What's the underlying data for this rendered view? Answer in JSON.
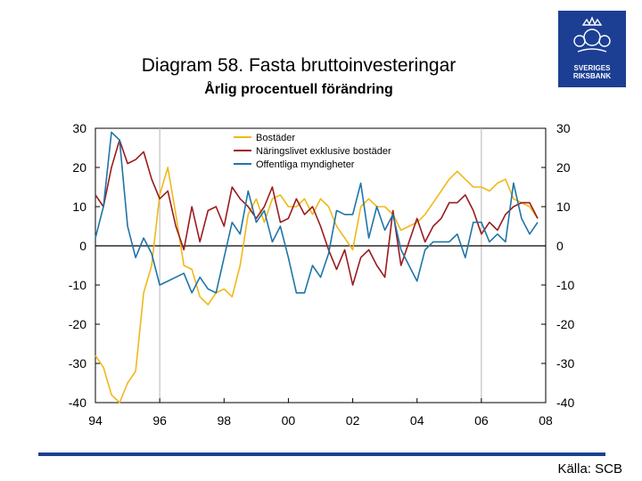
{
  "header": {
    "title": "Diagram 58. Fasta bruttoinvesteringar",
    "subtitle": "Årlig procentuell förändring"
  },
  "logo": {
    "icon": "crown-emblem-icon",
    "line1": "SVERIGES",
    "line2": "RIKSBANK",
    "color": "#1c3f94"
  },
  "footer": {
    "source": "Källa: SCB"
  },
  "colors": {
    "bostader": "#f0b819",
    "naringslivet": "#9b1b1e",
    "offentliga": "#1f75a8",
    "brand": "#1c3f94"
  },
  "chart_data": {
    "type": "line",
    "title": "Diagram 58. Fasta bruttoinvesteringar",
    "subtitle": "Årlig procentuell förändring",
    "xlabel": "",
    "ylabel": "",
    "xlim": [
      1994,
      2008
    ],
    "ylim": [
      -40,
      30
    ],
    "x_ticks": [
      {
        "value": 1994,
        "label": "94"
      },
      {
        "value": 1996,
        "label": "96"
      },
      {
        "value": 1998,
        "label": "98"
      },
      {
        "value": 2000,
        "label": "00"
      },
      {
        "value": 2002,
        "label": "02"
      },
      {
        "value": 2004,
        "label": "04"
      },
      {
        "value": 2006,
        "label": "06"
      },
      {
        "value": 2008,
        "label": "08"
      }
    ],
    "y_ticks_left": [
      "30",
      "20",
      "10",
      "0",
      "-10",
      "-20",
      "-30",
      "-40"
    ],
    "y_ticks_right": [
      "30",
      "20",
      "10",
      "0",
      "-10",
      "-20",
      "-30",
      "-40"
    ],
    "y_tick_values": [
      30,
      20,
      10,
      0,
      -10,
      -20,
      -30,
      -40
    ],
    "vertical_lines": [
      1996,
      2006
    ],
    "legend_position": "top-center",
    "series": [
      {
        "name": "Bostäder",
        "color": "#f0b819",
        "x": [
          1994.0,
          1994.25,
          1994.5,
          1994.75,
          1995.0,
          1995.25,
          1995.5,
          1995.75,
          1996.0,
          1996.25,
          1996.5,
          1996.75,
          1997.0,
          1997.25,
          1997.5,
          1997.75,
          1998.0,
          1998.25,
          1998.5,
          1998.75,
          1999.0,
          1999.25,
          1999.5,
          1999.75,
          2000.0,
          2000.25,
          2000.5,
          2000.75,
          2001.0,
          2001.25,
          2001.5,
          2001.75,
          2002.0,
          2002.25,
          2002.5,
          2002.75,
          2003.0,
          2003.25,
          2003.5,
          2003.75,
          2004.0,
          2004.25,
          2004.5,
          2004.75,
          2005.0,
          2005.25,
          2005.5,
          2005.75,
          2006.0,
          2006.25,
          2006.5,
          2006.75,
          2007.0,
          2007.25,
          2007.5,
          2007.75
        ],
        "values": [
          -28,
          -31,
          -38,
          -40,
          -35,
          -32,
          -12,
          -5,
          13,
          20,
          8,
          -5,
          -6,
          -13,
          -15,
          -12,
          -11,
          -13,
          -5,
          8,
          12,
          6,
          12,
          13,
          10,
          10,
          12,
          8,
          12,
          10,
          5,
          2,
          -1,
          10,
          12,
          10,
          10,
          8,
          4,
          5,
          6,
          8,
          11,
          14,
          17,
          19,
          17,
          15,
          15,
          14,
          16,
          17,
          12,
          11,
          10,
          7
        ]
      },
      {
        "name": "Näringslivet exklusive bostäder",
        "color": "#9b1b1e",
        "x": [
          1994.0,
          1994.25,
          1994.5,
          1994.75,
          1995.0,
          1995.25,
          1995.5,
          1995.75,
          1996.0,
          1996.25,
          1996.5,
          1996.75,
          1997.0,
          1997.25,
          1997.5,
          1997.75,
          1998.0,
          1998.25,
          1998.5,
          1998.75,
          1999.0,
          1999.25,
          1999.5,
          1999.75,
          2000.0,
          2000.25,
          2000.5,
          2000.75,
          2001.0,
          2001.25,
          2001.5,
          2001.75,
          2002.0,
          2002.25,
          2002.5,
          2002.75,
          2003.0,
          2003.25,
          2003.5,
          2003.75,
          2004.0,
          2004.25,
          2004.5,
          2004.75,
          2005.0,
          2005.25,
          2005.5,
          2005.75,
          2006.0,
          2006.25,
          2006.5,
          2006.75,
          2007.0,
          2007.25,
          2007.5,
          2007.75
        ],
        "values": [
          13,
          10,
          20,
          27,
          21,
          22,
          24,
          17,
          12,
          14,
          5,
          -1,
          10,
          1,
          9,
          10,
          5,
          15,
          12,
          10,
          7,
          10,
          15,
          6,
          7,
          12,
          8,
          10,
          5,
          -1,
          -6,
          -1,
          -10,
          -3,
          -1,
          -5,
          -8,
          9,
          -5,
          1,
          7,
          1,
          5,
          7,
          11,
          11,
          13,
          9,
          3,
          6,
          4,
          8,
          10,
          11,
          11,
          7
        ]
      },
      {
        "name": "Offentliga myndigheter",
        "color": "#1f75a8",
        "x": [
          1994.0,
          1994.25,
          1994.5,
          1994.75,
          1995.0,
          1995.25,
          1995.5,
          1995.75,
          1996.0,
          1996.25,
          1996.5,
          1996.75,
          1997.0,
          1997.25,
          1997.5,
          1997.75,
          1998.0,
          1998.25,
          1998.5,
          1998.75,
          1999.0,
          1999.25,
          1999.5,
          1999.75,
          2000.0,
          2000.25,
          2000.5,
          2000.75,
          2001.0,
          2001.25,
          2001.5,
          2001.75,
          2002.0,
          2002.25,
          2002.5,
          2002.75,
          2003.0,
          2003.25,
          2003.5,
          2003.75,
          2004.0,
          2004.25,
          2004.5,
          2004.75,
          2005.0,
          2005.25,
          2005.5,
          2005.75,
          2006.0,
          2006.25,
          2006.5,
          2006.75,
          2007.0,
          2007.25,
          2007.5,
          2007.75
        ],
        "values": [
          2,
          10,
          29,
          27,
          5,
          -3,
          2,
          -2,
          -10,
          -9,
          -8,
          -7,
          -12,
          -8,
          -11,
          -12,
          -3,
          6,
          3,
          14,
          6,
          9,
          1,
          5,
          -3,
          -12,
          -12,
          -5,
          -8,
          -2,
          9,
          8,
          8,
          16,
          2,
          10,
          4,
          8,
          -1,
          -5,
          -9,
          -1,
          1,
          1,
          1,
          3,
          -3,
          6,
          6,
          1,
          3,
          1,
          16,
          7,
          3,
          6
        ]
      }
    ]
  }
}
